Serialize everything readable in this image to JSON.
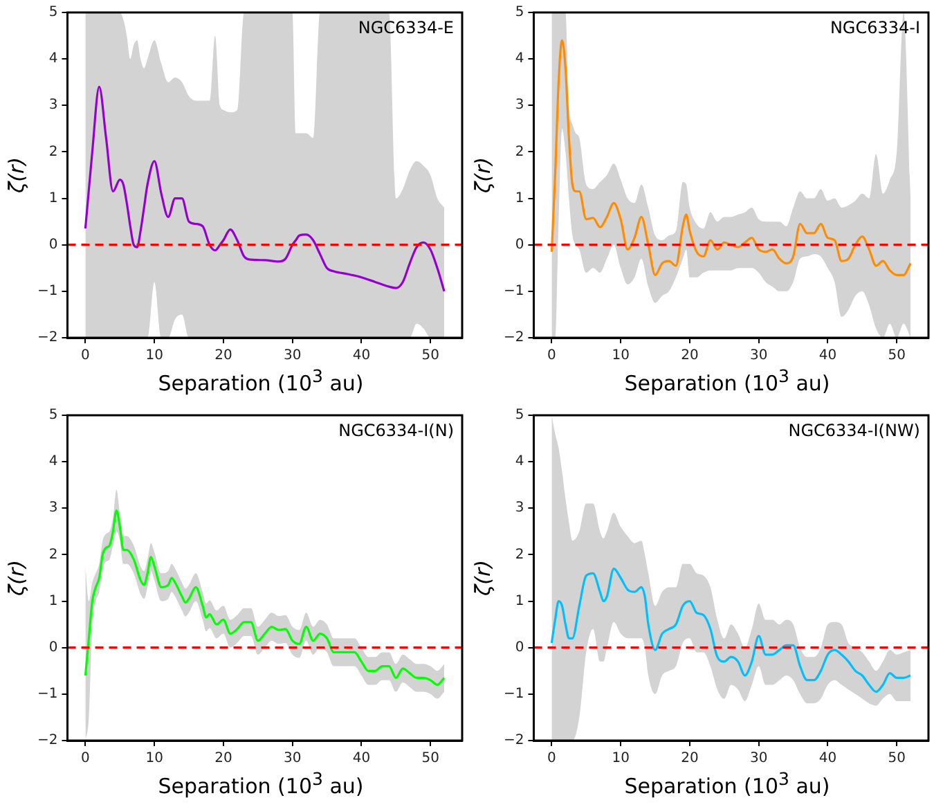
{
  "chart_data": [
    {
      "type": "line",
      "xlabel": "Separation (10$^{3}$ au)",
      "ylabel": "ζ(r)",
      "annotations": [
        "NGC6334-E"
      ],
      "xlim": [
        -2.6,
        54.6
      ],
      "ylim": [
        -2,
        5
      ],
      "xticks": [
        0,
        10,
        20,
        30,
        40,
        50
      ],
      "yticks": [
        -2,
        -1,
        0,
        1,
        2,
        3,
        4,
        5
      ],
      "grid": false,
      "legend": false,
      "marker": "none",
      "line_style": "solid",
      "ref_lines": [
        {
          "axis": "y",
          "value": 0,
          "color": "#ff0000",
          "line_style": "dashed"
        }
      ],
      "series": [
        {
          "color": "#9400d3",
          "x": [
            0,
            1,
            2,
            3,
            4,
            5,
            5.5,
            6,
            6.5,
            7,
            7.5,
            8,
            8.5,
            9,
            10,
            11,
            12,
            13,
            14,
            15,
            16,
            17,
            18,
            18.8,
            19.5,
            20,
            21,
            22,
            23,
            24,
            26,
            28,
            29,
            30,
            30.5,
            31,
            32,
            33,
            34,
            35,
            36,
            38,
            40,
            42,
            44,
            45,
            46,
            47,
            48,
            49,
            50,
            51,
            52
          ],
          "values": [
            0.35,
            2.0,
            3.4,
            2.3,
            1.15,
            1.4,
            1.3,
            0.9,
            0.4,
            0.0,
            -0.05,
            0.3,
            0.8,
            1.3,
            1.8,
            1.1,
            0.6,
            1.0,
            1.0,
            0.5,
            0.45,
            0.4,
            0.0,
            -0.12,
            0.0,
            0.1,
            0.33,
            0.1,
            -0.25,
            -0.32,
            -0.33,
            -0.36,
            -0.3,
            0.0,
            0.1,
            0.2,
            0.22,
            0.1,
            -0.2,
            -0.5,
            -0.57,
            -0.63,
            -0.7,
            -0.8,
            -0.9,
            -0.93,
            -0.8,
            -0.4,
            -0.05,
            0.05,
            -0.1,
            -0.5,
            -1.0
          ],
          "upper": [
            5,
            5,
            5,
            5,
            5,
            5,
            4.85,
            4.5,
            4.0,
            4.3,
            4.4,
            4.0,
            3.8,
            4.0,
            4.4,
            3.9,
            3.5,
            3.6,
            3.5,
            3.2,
            3.1,
            3.1,
            3.1,
            4.5,
            3.0,
            2.9,
            2.85,
            2.9,
            5,
            5,
            5,
            5,
            5,
            5,
            2.4,
            2.4,
            2.4,
            2.3,
            5,
            5,
            5,
            5,
            5,
            5,
            5,
            1.0,
            1.2,
            1.6,
            1.8,
            1.7,
            1.5,
            1.0,
            0.8
          ],
          "lower": [
            -2,
            -2,
            -2,
            -2,
            -2,
            -2,
            -2,
            -2,
            -2,
            -2,
            -2,
            -2,
            -2,
            -2,
            -0.8,
            -2,
            -2,
            -1.6,
            -1.5,
            -2,
            -2,
            -2,
            -2,
            -2,
            -2,
            -2,
            -2,
            -2,
            -2,
            -2,
            -2,
            -2,
            -2,
            -2,
            -2,
            -2,
            -2,
            -2,
            -2,
            -2,
            -2,
            -2,
            -2,
            -2,
            -2,
            -2,
            -2,
            -2,
            -1.7,
            -1.8,
            -2,
            -2,
            -2
          ]
        }
      ]
    },
    {
      "type": "line",
      "xlabel": "Separation (10$^{3}$ au)",
      "ylabel": "ζ(r)",
      "annotations": [
        "NGC6334-I"
      ],
      "xlim": [
        -2.6,
        54.6
      ],
      "ylim": [
        -2,
        5
      ],
      "xticks": [
        0,
        10,
        20,
        30,
        40,
        50
      ],
      "yticks": [
        -2,
        -1,
        0,
        1,
        2,
        3,
        4,
        5
      ],
      "grid": false,
      "legend": false,
      "marker": "none",
      "line_style": "solid",
      "ref_lines": [
        {
          "axis": "y",
          "value": 0,
          "color": "#ff0000",
          "line_style": "dashed"
        }
      ],
      "series": [
        {
          "color": "#ff8c00",
          "x": [
            0,
            0.5,
            1,
            1.5,
            2,
            2.5,
            3,
            3.5,
            4,
            5,
            6,
            7,
            8,
            9,
            10,
            11,
            12,
            13,
            14,
            15,
            16,
            17,
            18,
            19,
            19.5,
            20,
            21,
            22,
            23,
            24,
            25,
            26,
            27,
            28,
            29,
            30,
            31,
            32,
            33,
            34,
            35,
            36,
            37,
            38,
            39,
            40,
            41,
            42,
            43,
            44,
            45,
            46,
            47,
            48,
            49,
            50,
            51,
            52
          ],
          "values": [
            -0.15,
            1.5,
            3.5,
            4.4,
            3.8,
            2.3,
            1.3,
            1.15,
            1.15,
            0.55,
            0.58,
            0.38,
            0.6,
            0.9,
            0.55,
            -0.1,
            0.15,
            0.6,
            0.0,
            -0.65,
            -0.4,
            -0.35,
            -0.45,
            0.4,
            0.65,
            0.3,
            -0.15,
            -0.25,
            0.1,
            -0.1,
            0.05,
            0.0,
            -0.05,
            0.05,
            0.15,
            -0.1,
            -0.15,
            -0.1,
            -0.3,
            -0.4,
            -0.25,
            0.45,
            0.25,
            0.25,
            0.45,
            0.15,
            0.1,
            -0.35,
            -0.3,
            0.0,
            0.18,
            -0.1,
            -0.45,
            -0.35,
            -0.55,
            -0.65,
            -0.65,
            -0.4
          ],
          "upper": [
            5,
            5,
            5,
            5,
            5,
            3.0,
            2.6,
            2.4,
            2.3,
            1.3,
            1.2,
            1.35,
            1.5,
            1.75,
            1.4,
            1.0,
            0.9,
            1.3,
            0.8,
            0.2,
            0.1,
            0.2,
            0.3,
            1.35,
            1.3,
            0.8,
            0.45,
            0.35,
            0.7,
            0.5,
            0.6,
            0.6,
            0.65,
            0.7,
            0.8,
            0.55,
            0.5,
            0.5,
            0.5,
            0.4,
            0.8,
            1.15,
            1.0,
            1.0,
            1.2,
            0.95,
            1.0,
            0.8,
            0.85,
            0.95,
            1.1,
            1.0,
            1.95,
            1.1,
            1.4,
            2.0,
            5,
            1.0
          ],
          "lower": [
            -2,
            -2,
            0.5,
            2.5,
            2.0,
            1.0,
            0.2,
            0.0,
            -0.1,
            -0.6,
            -0.5,
            -0.6,
            -0.3,
            0.0,
            -0.5,
            -0.85,
            -0.7,
            -0.3,
            -0.9,
            -1.25,
            -1.1,
            -1.0,
            -0.7,
            -0.3,
            -0.1,
            -0.7,
            -0.7,
            -0.6,
            -0.55,
            -0.55,
            -0.55,
            -0.55,
            -0.5,
            -0.5,
            -0.5,
            -0.6,
            -0.8,
            -0.9,
            -1.0,
            -1.0,
            -0.8,
            -0.3,
            -0.25,
            -0.2,
            -0.25,
            -0.5,
            -0.8,
            -1.55,
            -1.4,
            -1.1,
            -1.0,
            -1.3,
            -1.8,
            -2,
            -1.7,
            -2,
            -1.7,
            -2
          ]
        }
      ]
    },
    {
      "type": "line",
      "xlabel": "Separation (10$^{3}$ au)",
      "ylabel": "ζ(r)",
      "annotations": [
        "NGC6334-I(N)"
      ],
      "xlim": [
        -2.6,
        54.6
      ],
      "ylim": [
        -2,
        5
      ],
      "xticks": [
        0,
        10,
        20,
        30,
        40,
        50
      ],
      "yticks": [
        -2,
        -1,
        0,
        1,
        2,
        3,
        4,
        5
      ],
      "grid": false,
      "legend": false,
      "marker": "none",
      "line_style": "solid",
      "ref_lines": [
        {
          "axis": "y",
          "value": 0,
          "color": "#ff0000",
          "line_style": "dashed"
        }
      ],
      "series": [
        {
          "color": "#00ff00",
          "x": [
            0,
            0.5,
            1,
            1.5,
            2,
            2.5,
            3,
            3.5,
            4,
            4.5,
            5,
            5.5,
            6,
            7,
            8,
            8.5,
            9,
            9.5,
            10,
            11,
            12,
            12.5,
            13,
            14,
            14.5,
            15,
            16,
            17,
            17.5,
            18,
            19,
            20,
            21,
            22,
            23,
            24,
            25,
            26,
            27,
            28,
            29,
            30,
            31,
            32,
            33,
            34,
            35,
            36,
            37,
            38,
            39,
            40,
            41,
            42,
            43,
            44,
            45,
            46,
            47,
            48,
            49,
            50,
            51,
            52
          ],
          "values": [
            -0.6,
            0.2,
            1.0,
            1.3,
            1.5,
            2.0,
            2.15,
            2.2,
            2.5,
            2.95,
            2.6,
            2.1,
            2.1,
            1.9,
            1.45,
            1.35,
            1.6,
            1.95,
            1.75,
            1.3,
            1.35,
            1.5,
            1.4,
            1.1,
            0.97,
            1.05,
            1.3,
            0.9,
            0.65,
            0.72,
            0.5,
            0.6,
            0.3,
            0.4,
            0.55,
            0.55,
            0.15,
            0.3,
            0.45,
            0.38,
            0.4,
            0.15,
            0.08,
            0.45,
            0.15,
            0.3,
            0.2,
            -0.1,
            -0.1,
            -0.1,
            -0.1,
            -0.3,
            -0.5,
            -0.5,
            -0.4,
            -0.4,
            -0.65,
            -0.45,
            -0.55,
            -0.65,
            -0.65,
            -0.7,
            -0.8,
            -0.65
          ],
          "upper": [
            1.75,
            1.0,
            1.4,
            1.6,
            1.8,
            2.3,
            2.45,
            2.5,
            2.8,
            3.4,
            2.9,
            2.4,
            2.4,
            2.2,
            1.75,
            1.65,
            1.9,
            2.25,
            2.05,
            1.6,
            1.65,
            1.8,
            1.7,
            1.4,
            1.27,
            1.35,
            1.6,
            1.2,
            0.95,
            1.02,
            0.8,
            0.9,
            0.6,
            0.7,
            0.85,
            0.85,
            0.45,
            0.6,
            0.75,
            0.68,
            0.7,
            0.45,
            0.38,
            0.75,
            0.45,
            0.6,
            0.5,
            0.2,
            0.2,
            0.2,
            0.2,
            0.0,
            -0.2,
            -0.2,
            -0.1,
            -0.1,
            -0.35,
            -0.15,
            -0.25,
            -0.35,
            -0.35,
            -0.4,
            -0.5,
            -0.35
          ],
          "lower": [
            -2,
            -1.5,
            0.5,
            1.0,
            1.2,
            1.7,
            1.85,
            1.9,
            2.2,
            2.5,
            2.3,
            1.8,
            1.8,
            1.6,
            1.15,
            1.05,
            1.3,
            1.65,
            1.45,
            1.0,
            1.05,
            1.2,
            1.1,
            0.8,
            0.67,
            0.75,
            1.0,
            0.6,
            0.35,
            0.42,
            0.2,
            0.3,
            0.0,
            0.1,
            0.25,
            0.25,
            -0.15,
            0.0,
            0.15,
            0.08,
            0.1,
            -0.15,
            -0.22,
            0.15,
            -0.15,
            0.0,
            -0.1,
            -0.4,
            -0.4,
            -0.4,
            -0.4,
            -0.6,
            -0.8,
            -0.8,
            -0.7,
            -0.7,
            -0.95,
            -0.75,
            -0.85,
            -0.95,
            -0.95,
            -1.0,
            -1.1,
            -0.95
          ]
        }
      ]
    },
    {
      "type": "line",
      "xlabel": "Separation (10$^{3}$ au)",
      "ylabel": "ζ(r)",
      "annotations": [
        "NGC6334-I(NW)"
      ],
      "xlim": [
        -2.6,
        54.6
      ],
      "ylim": [
        -2,
        5
      ],
      "xticks": [
        0,
        10,
        20,
        30,
        40,
        50
      ],
      "yticks": [
        -2,
        -1,
        0,
        1,
        2,
        3,
        4,
        5
      ],
      "grid": false,
      "legend": false,
      "marker": "none",
      "line_style": "solid",
      "ref_lines": [
        {
          "axis": "y",
          "value": 0,
          "color": "#ff0000",
          "line_style": "dashed"
        }
      ],
      "series": [
        {
          "color": "#00bfff",
          "x": [
            0,
            0.5,
            1,
            1.5,
            2,
            2.5,
            3,
            4,
            5,
            6,
            7,
            7.5,
            8,
            9,
            10,
            11,
            12,
            13,
            13.5,
            14,
            15,
            16,
            17,
            18,
            19,
            20,
            21,
            22,
            23,
            24,
            25,
            26,
            27,
            28,
            29,
            30,
            31,
            32,
            33,
            34,
            35,
            36,
            37,
            38,
            39,
            40,
            41,
            42,
            43,
            44,
            45,
            46,
            47,
            48,
            49,
            50,
            51,
            52
          ],
          "values": [
            0.1,
            0.6,
            1.0,
            0.9,
            0.5,
            0.2,
            0.2,
            0.9,
            1.55,
            1.6,
            1.2,
            1.0,
            1.1,
            1.7,
            1.5,
            1.25,
            1.2,
            1.3,
            1.1,
            0.5,
            -0.05,
            0.3,
            0.4,
            0.5,
            0.9,
            1.0,
            0.75,
            0.7,
            0.4,
            -0.2,
            -0.3,
            -0.2,
            -0.3,
            -0.6,
            -0.3,
            0.25,
            -0.15,
            -0.15,
            -0.05,
            0.05,
            0.05,
            -0.4,
            -0.7,
            -0.7,
            -0.5,
            -0.15,
            -0.05,
            -0.15,
            -0.3,
            -0.5,
            -0.6,
            -0.8,
            -0.95,
            -0.8,
            -0.55,
            -0.65,
            -0.65,
            -0.6
          ],
          "upper": [
            5,
            4.6,
            4.3,
            3.8,
            3.2,
            2.7,
            2.3,
            2.5,
            3.1,
            3.1,
            2.5,
            2.35,
            2.5,
            2.9,
            2.6,
            2.4,
            2.25,
            2.3,
            2.0,
            1.6,
            0.9,
            1.2,
            1.3,
            1.3,
            1.8,
            1.8,
            1.6,
            1.55,
            1.3,
            0.6,
            0.2,
            0.5,
            0.3,
            0.0,
            0.4,
            0.95,
            0.6,
            0.6,
            0.5,
            0.6,
            0.5,
            0.0,
            -0.2,
            -0.2,
            0.0,
            0.5,
            0.55,
            0.5,
            0.1,
            0.0,
            -0.1,
            -0.3,
            -0.5,
            -0.3,
            -0.05,
            -0.15,
            -0.1,
            -0.05
          ],
          "lower": [
            -2,
            -2,
            -2,
            -2,
            -2,
            -2,
            -2,
            -1.5,
            -0.1,
            0.4,
            -0.3,
            -0.3,
            0.0,
            0.55,
            0.3,
            0.2,
            0.2,
            0.2,
            0.0,
            -0.6,
            -1.0,
            -0.6,
            -0.5,
            -0.4,
            0.1,
            0.2,
            -0.1,
            -0.1,
            -0.4,
            -0.9,
            -1.1,
            -0.8,
            -0.9,
            -1.15,
            -0.8,
            -0.4,
            -0.8,
            -0.8,
            -0.7,
            -0.6,
            -0.7,
            -1.0,
            -1.2,
            -1.2,
            -1.1,
            -0.8,
            -0.7,
            -0.8,
            -0.9,
            -1.0,
            -1.1,
            -1.2,
            -1.25,
            -1.1,
            -1.0,
            -1.15,
            -1.15,
            -1.15
          ]
        }
      ]
    }
  ]
}
